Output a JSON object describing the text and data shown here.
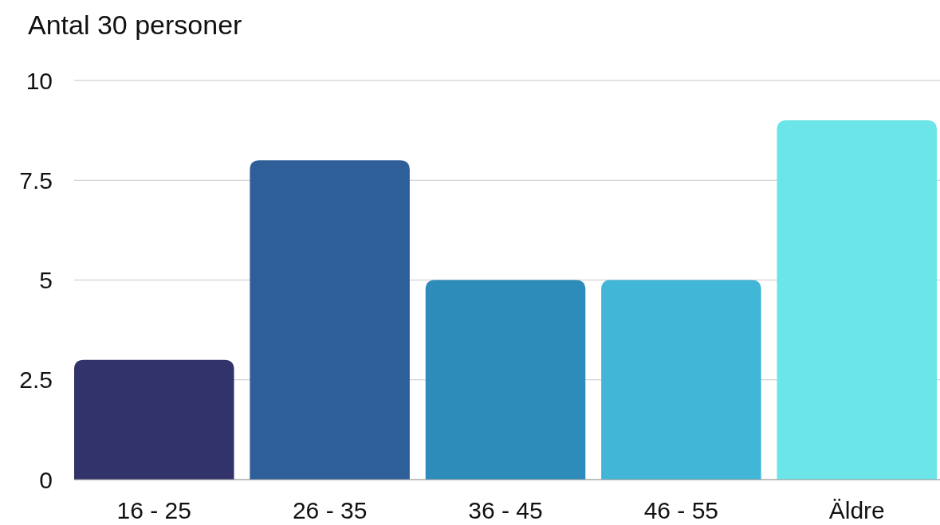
{
  "chart_data": {
    "type": "bar",
    "title": "Antal 30 personer",
    "categories": [
      "16 - 25",
      "26 - 35",
      "36 - 45",
      "46 - 55",
      "Äldre"
    ],
    "values": [
      3,
      8,
      5,
      5,
      9
    ],
    "colors": [
      "#32336a",
      "#2e5f98",
      "#2e8cba",
      "#42b6d6",
      "#6be5e8"
    ],
    "ylim": [
      0,
      10
    ],
    "yticks": [
      0,
      2.5,
      5,
      7.5,
      10
    ],
    "grid": "y"
  }
}
